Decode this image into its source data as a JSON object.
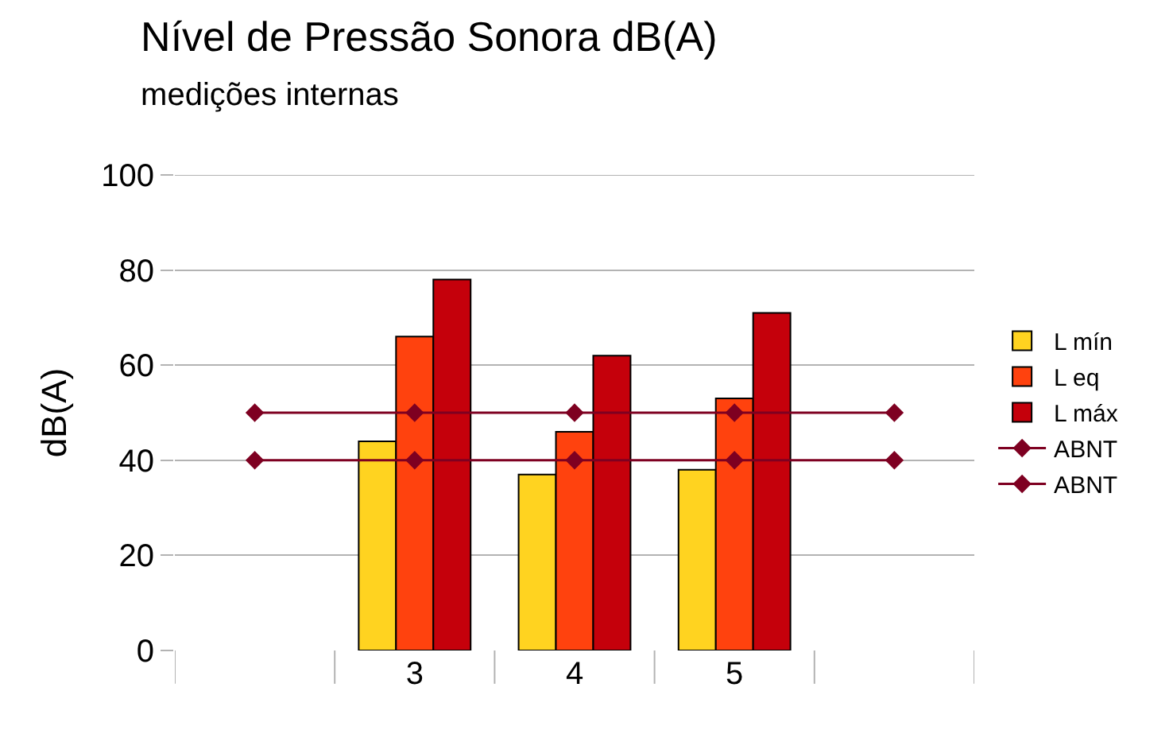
{
  "chart_data": {
    "type": "bar",
    "title": "Nível de Pressão Sonora dB(A)",
    "subtitle": "medições internas",
    "ylabel": "dB(A)",
    "categories": [
      null,
      "3",
      "4",
      "5",
      null
    ],
    "series": [
      {
        "name": "L mín",
        "color": "#ffd320",
        "values": [
          null,
          44,
          37,
          38,
          null
        ]
      },
      {
        "name": "L eq",
        "color": "#ff420e",
        "values": [
          null,
          66,
          46,
          53,
          null
        ]
      },
      {
        "name": "L máx",
        "color": "#c5000b",
        "values": [
          null,
          78,
          62,
          71,
          null
        ]
      },
      {
        "name": "ABNT",
        "type": "line",
        "color": "#7e0021",
        "marker": "diamond",
        "values": [
          50,
          50,
          50,
          50,
          50
        ]
      },
      {
        "name": "ABNT",
        "type": "line",
        "color": "#7e0021",
        "marker": "diamond",
        "values": [
          40,
          40,
          40,
          40,
          40
        ]
      }
    ],
    "ylim": [
      0,
      100
    ],
    "yticks": [
      0,
      20,
      40,
      60,
      80,
      100
    ],
    "grid": "y",
    "legend": "right"
  }
}
